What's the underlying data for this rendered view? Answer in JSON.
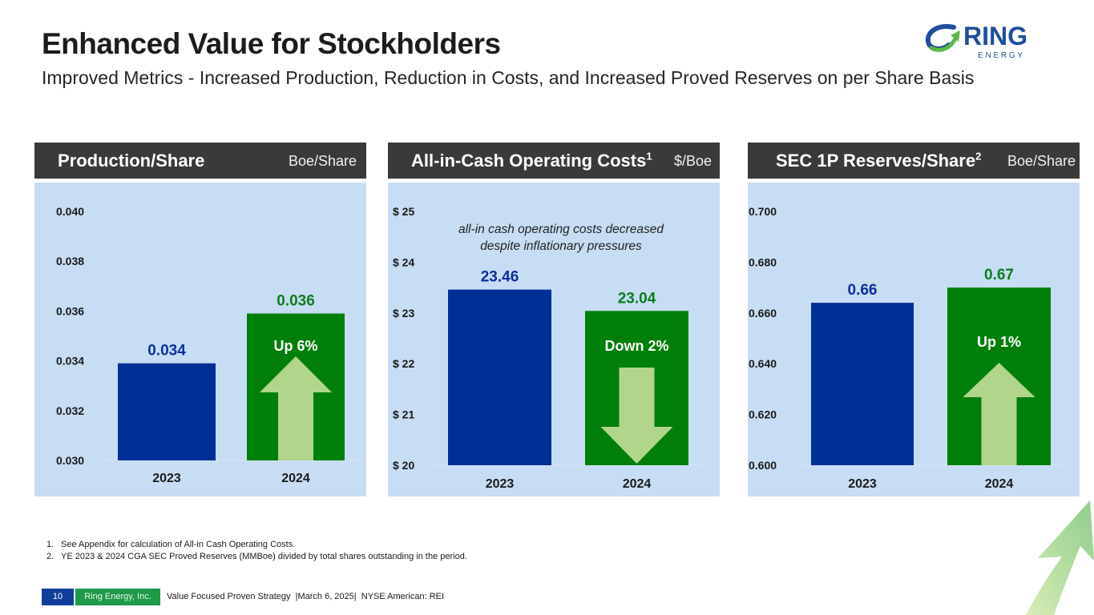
{
  "header": {
    "title": "Enhanced Value for Stockholders",
    "subtitle": "Improved Metrics - Increased Production, Reduction in Costs, and Increased Proved Reserves on per Share Basis",
    "logo": {
      "name": "RING",
      "tagline": "E N E R G Y",
      "icon": "swoosh-arrow-icon"
    }
  },
  "colors": {
    "bar_2023": "#002f96",
    "bar_2024": "#00800a",
    "arrow": "#b2d58c",
    "panel_bg": "#c7ddf3",
    "header_bg": "#3a3a3a",
    "label_2023": "#0a2fa0",
    "label_2024": "#0b7d1c"
  },
  "chart_data": [
    {
      "type": "bar",
      "title": "Production/Share",
      "title_sup": "",
      "unit": "Boe/Share",
      "categories": [
        "2023",
        "2024"
      ],
      "values": [
        0.0339,
        0.0359
      ],
      "value_labels": [
        "0.034",
        "0.036"
      ],
      "ylim": [
        0.03,
        0.04
      ],
      "yticks": [
        0.03,
        0.032,
        0.034,
        0.036,
        0.038,
        0.04
      ],
      "ytick_labels": [
        "0.030",
        "0.032",
        "0.034",
        "0.036",
        "0.038",
        "0.040"
      ],
      "change_label": "Up 6%",
      "change_direction": "up",
      "annotation": "",
      "grid": false
    },
    {
      "type": "bar",
      "title": "All-in-Cash Operating Costs",
      "title_sup": "1",
      "unit": "$/Boe",
      "categories": [
        "2023",
        "2024"
      ],
      "values": [
        23.46,
        23.04
      ],
      "value_labels": [
        "23.46",
        "23.04"
      ],
      "ylim": [
        20,
        25
      ],
      "yticks": [
        20,
        21,
        22,
        23,
        24,
        25
      ],
      "ytick_labels": [
        "$ 20",
        "$ 21",
        "$ 22",
        "$ 23",
        "$ 24",
        "$ 25"
      ],
      "change_label": "Down 2%",
      "change_direction": "down",
      "annotation": [
        "all-in cash operating costs decreased",
        "despite inflationary pressures"
      ],
      "grid": false
    },
    {
      "type": "bar",
      "title": "SEC 1P Reserves/Share",
      "title_sup": "2",
      "unit": "Boe/Share",
      "categories": [
        "2023",
        "2024"
      ],
      "values": [
        0.664,
        0.67
      ],
      "value_labels": [
        "0.66",
        "0.67"
      ],
      "ylim": [
        0.6,
        0.7
      ],
      "yticks": [
        0.6,
        0.62,
        0.64,
        0.66,
        0.68,
        0.7
      ],
      "ytick_labels": [
        "0.600",
        "0.620",
        "0.640",
        "0.660",
        "0.680",
        "0.700"
      ],
      "change_label": "Up 1%",
      "change_direction": "up",
      "annotation": "",
      "grid": false
    }
  ],
  "footnotes": [
    {
      "num": "1.",
      "text": "See Appendix for calculation of All-in Cash Operating Costs."
    },
    {
      "num": "2.",
      "text": "YE 2023 & 2024 CGA SEC Proved Reserves (MMBoe) divided by total shares outstanding in the period."
    }
  ],
  "footer": {
    "page_number": "10",
    "company": "Ring Energy, Inc.",
    "text": "Value Focused Proven Strategy  |March 6, 2025|  NYSE American: REI"
  }
}
